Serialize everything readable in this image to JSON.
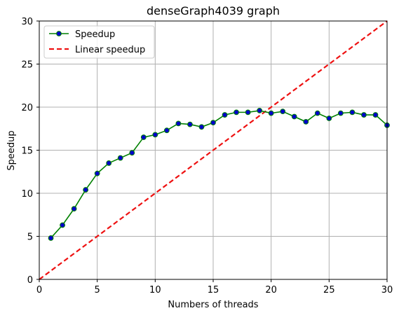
{
  "chart_data": {
    "type": "line",
    "title": "denseGraph4039 graph",
    "xlabel": "Numbers of threads",
    "ylabel": "Speedup",
    "xlim": [
      0,
      30
    ],
    "ylim": [
      0,
      30
    ],
    "xticks": [
      0,
      5,
      10,
      15,
      20,
      25,
      30
    ],
    "yticks": [
      0,
      5,
      10,
      15,
      20,
      25,
      30
    ],
    "grid": true,
    "legend_position": "top-left",
    "series": [
      {
        "name": "Speedup",
        "color": "#008000",
        "marker_color": "#0000cc",
        "style": "solid-with-markers",
        "x": [
          1,
          2,
          3,
          4,
          5,
          6,
          7,
          8,
          9,
          10,
          11,
          12,
          13,
          14,
          15,
          16,
          17,
          18,
          19,
          20,
          21,
          22,
          23,
          24,
          25,
          26,
          27,
          28,
          29,
          30
        ],
        "y": [
          4.8,
          6.3,
          8.2,
          10.4,
          12.3,
          13.5,
          14.1,
          14.7,
          16.5,
          16.8,
          17.3,
          18.1,
          18.0,
          17.7,
          18.2,
          19.1,
          19.4,
          19.4,
          19.6,
          19.3,
          19.5,
          18.9,
          18.3,
          19.3,
          18.7,
          19.3,
          19.4,
          19.1,
          19.1,
          17.9
        ]
      },
      {
        "name": "Linear speedup",
        "color": "#ee1111",
        "style": "dashed",
        "x": [
          0,
          30
        ],
        "y": [
          0,
          30
        ]
      }
    ]
  }
}
